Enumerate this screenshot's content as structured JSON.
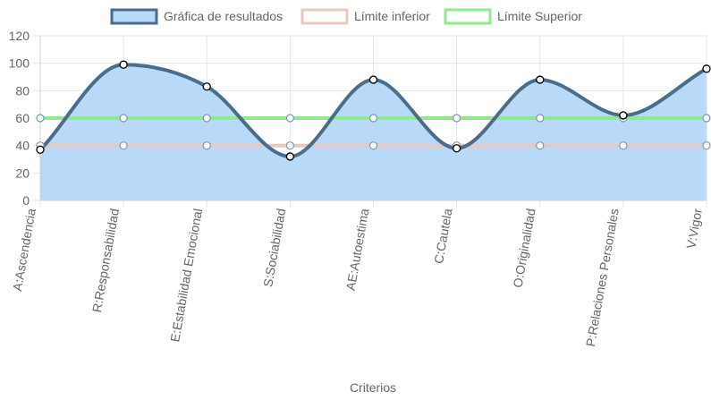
{
  "chart_data": {
    "type": "line",
    "categories": [
      "A:Ascendencia",
      "R:Responsabilidad",
      "E:Estabilidad Emocional",
      "S:Sociabilidad",
      "AE:Autoestima",
      "C:Cautela",
      "O:Originalidad",
      "P:Relaciones Personales",
      "V:Vigor"
    ],
    "series": [
      {
        "name": "Gráfica de resultados",
        "values": [
          37,
          99,
          83,
          32,
          88,
          38,
          88,
          62,
          96
        ],
        "color": "#4a6d8c",
        "fill": "#b8d9f7"
      },
      {
        "name": "Límite inferior",
        "values": [
          40,
          40,
          40,
          40,
          40,
          40,
          40,
          40,
          40
        ],
        "color": "#e6c9bf"
      },
      {
        "name": "Límite Superior",
        "values": [
          60,
          60,
          60,
          60,
          60,
          60,
          60,
          60,
          60
        ],
        "color": "#90e890"
      }
    ],
    "xlabel": "Criterios",
    "ylabel": "",
    "ylim": [
      0,
      120
    ],
    "yticks": [
      "0",
      "20",
      "40",
      "60",
      "80",
      "100",
      "120"
    ],
    "grid": true,
    "legend_position": "top"
  }
}
